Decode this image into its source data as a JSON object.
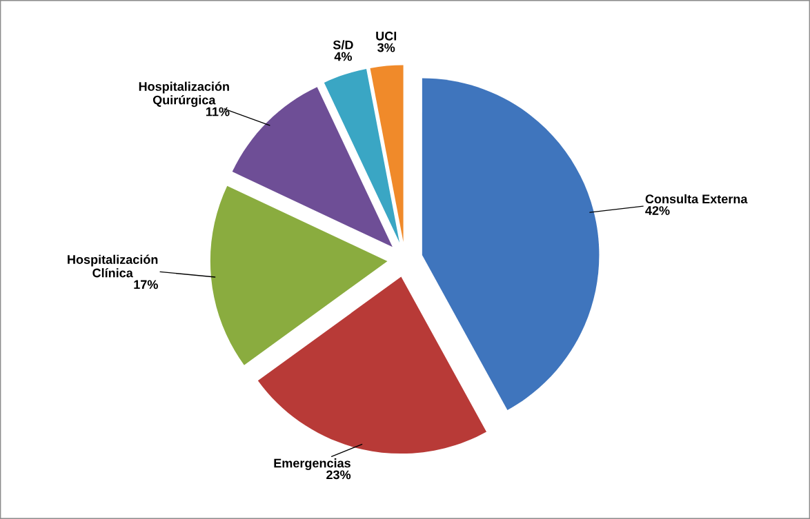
{
  "chart_data": {
    "type": "pie",
    "categories": [
      "Consulta Externa",
      "Emergencias",
      "Hospitalización\nClínica",
      "Hospitalización\nQuirúrgica",
      "S/D",
      "UCI"
    ],
    "values": [
      42,
      23,
      17,
      11,
      4,
      3
    ],
    "value_labels": [
      "42%",
      "23%",
      "17%",
      "11%",
      "4%",
      "3%"
    ],
    "colors": [
      "#3f75bd",
      "#b83a37",
      "#8aac3f",
      "#6e4e96",
      "#3aa6c4",
      "#f08a2a"
    ]
  }
}
